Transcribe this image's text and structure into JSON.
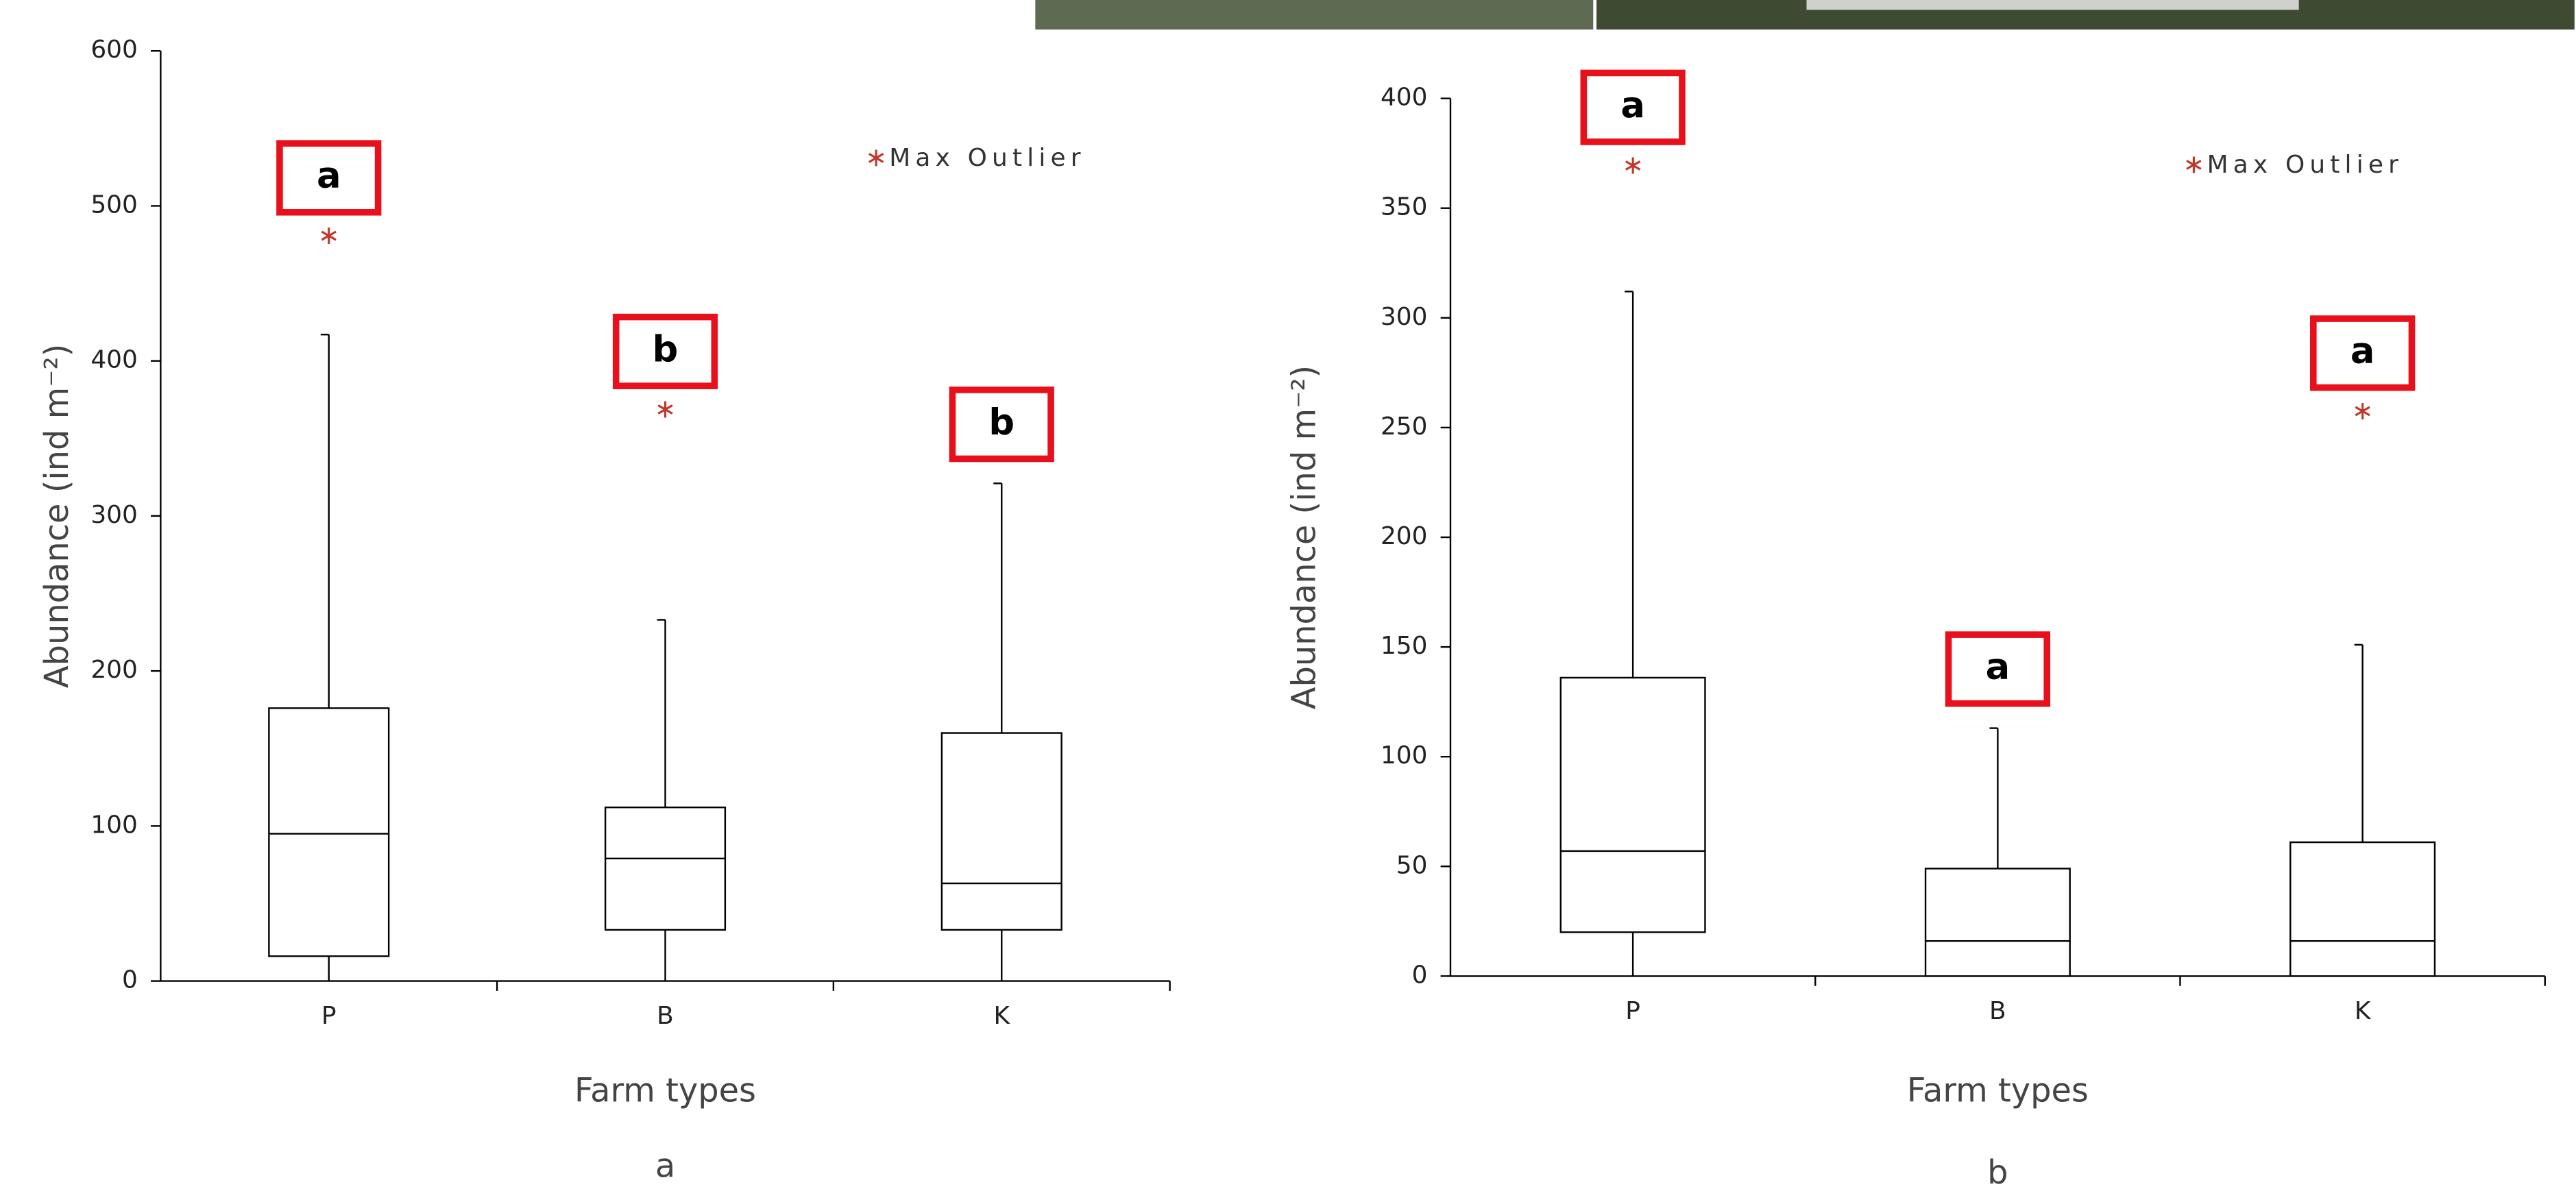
{
  "chart_data": [
    {
      "type": "box",
      "caption": "a",
      "x_label": "Farm types",
      "y_label": "Abundance (ind m⁻²)",
      "categories": [
        "P",
        "B",
        "K"
      ],
      "min": [
        0,
        0,
        0
      ],
      "q1": [
        16,
        33,
        33
      ],
      "median": [
        95,
        79,
        63
      ],
      "q3": [
        176,
        112,
        160
      ],
      "max": [
        417,
        233,
        321
      ],
      "outliers": [
        480,
        368,
        null
      ],
      "letters": [
        "a",
        "b",
        "b"
      ],
      "outlier_label": "Max Outlier",
      "outlier_color": "#c0392b",
      "letter_box_color": "#e8111b",
      "ylim": [
        0,
        600
      ],
      "yticks": [
        0,
        100,
        200,
        300,
        400,
        500,
        600
      ]
    },
    {
      "type": "box",
      "caption": "b",
      "x_label": "Farm types",
      "y_label": "Abundance (ind m⁻²)",
      "categories": [
        "P",
        "B",
        "K"
      ],
      "min": [
        0,
        0,
        0
      ],
      "q1": [
        20,
        0,
        0
      ],
      "median": [
        57,
        16,
        16
      ],
      "q3": [
        136,
        49,
        61
      ],
      "max": [
        312,
        113,
        151
      ],
      "outliers": [
        369,
        null,
        257
      ],
      "letters": [
        "a",
        "a",
        "a"
      ],
      "outlier_label": "Max Outlier",
      "outlier_color": "#c0392b",
      "letter_box_color": "#e8111b",
      "ylim": [
        0,
        400
      ],
      "yticks": [
        0,
        50,
        100,
        150,
        200,
        250,
        300,
        350,
        400
      ]
    }
  ]
}
